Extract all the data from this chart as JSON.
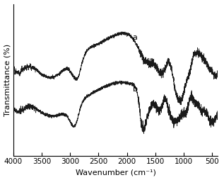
{
  "xlabel": "Wavenumber (cm⁻¹)",
  "ylabel": "Transmittance (%)",
  "label_a": "a",
  "label_b": "b",
  "xticks": [
    4000,
    3500,
    3000,
    2500,
    2000,
    1500,
    1000,
    500
  ],
  "line_color": "#1a1a1a",
  "background_color": "#ffffff",
  "axis_fontsize": 8,
  "tick_fontsize": 7.5
}
